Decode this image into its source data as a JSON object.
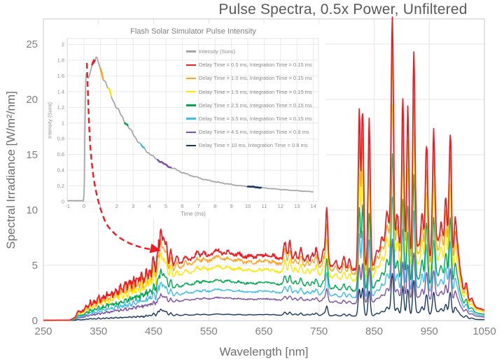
{
  "palette": {
    "gray": "#A6A6A6",
    "red": "#EA1C24",
    "orange": "#FFA227",
    "yellow": "#FFE60A",
    "green": "#00A550",
    "cyan": "#3FBCE9",
    "purple": "#7C52A0",
    "navy": "#17365D",
    "grid": "#E4E4E4",
    "border": "#C9C9C9",
    "tick_text": "#7F7F7F",
    "title_text": "#595959"
  },
  "chart_data": {
    "main": {
      "type": "line",
      "title": "Pulse Spectra, 0.5x Power, Unfiltered",
      "xlabel": "Wavelength [nm]",
      "ylabel": "Spectral Irradiance [W/m²/nm]",
      "xlim": [
        250,
        1050
      ],
      "ylim": [
        0,
        27.3
      ],
      "xticks": [
        250,
        350,
        450,
        550,
        650,
        750,
        850,
        950,
        1050
      ],
      "yticks": [
        0,
        5,
        10,
        15,
        20,
        25
      ],
      "grid": true,
      "series": [
        {
          "label": "Delay Time = 0.5 ms, Integration Time = 0.15 ms",
          "color": "red",
          "continuum_scale": 1.0,
          "line_scale": 1.0
        },
        {
          "label": "Delay Time = 1.0 ms, Integration Time = 0.15 ms",
          "color": "orange",
          "continuum_scale": 0.915,
          "line_scale": 0.84
        },
        {
          "label": "Delay Time = 1.5 ms, Integration Time = 0.15 ms",
          "color": "yellow",
          "continuum_scale": 0.785,
          "line_scale": 0.7
        },
        {
          "label": "Delay Time = 2.5 ms, Integration Time = 0.15 ms",
          "color": "green",
          "continuum_scale": 0.585,
          "line_scale": 0.53
        },
        {
          "label": "Delay Time = 3.5 ms, Integration Time = 0.15 ms",
          "color": "cyan",
          "continuum_scale": 0.45,
          "line_scale": 0.4
        },
        {
          "label": "Delay Time = 4.5 ms, Integration Time = 0.8 ms",
          "color": "purple",
          "continuum_scale": 0.335,
          "line_scale": 0.24
        },
        {
          "label": "Delay Time = 10 ms, Integration Time = 0.8 ms",
          "color": "navy",
          "continuum_scale": 0.088,
          "line_scale": 0.175
        }
      ],
      "continuum_anchors": [
        [
          250,
          0.03
        ],
        [
          298,
          0.04
        ],
        [
          306,
          0.25
        ],
        [
          312,
          0.55
        ],
        [
          320,
          0.85
        ],
        [
          330,
          1.12
        ],
        [
          340,
          1.38
        ],
        [
          352,
          1.7
        ],
        [
          365,
          2.05
        ],
        [
          378,
          2.38
        ],
        [
          392,
          2.72
        ],
        [
          406,
          3.05
        ],
        [
          420,
          3.38
        ],
        [
          434,
          3.68
        ],
        [
          448,
          3.98
        ],
        [
          462,
          4.35
        ],
        [
          476,
          4.72
        ],
        [
          490,
          5.05
        ],
        [
          505,
          5.35
        ],
        [
          520,
          5.6
        ],
        [
          538,
          5.78
        ],
        [
          556,
          5.88
        ],
        [
          575,
          5.92
        ],
        [
          595,
          5.88
        ],
        [
          612,
          5.72
        ],
        [
          628,
          5.62
        ],
        [
          645,
          5.68
        ],
        [
          662,
          5.62
        ],
        [
          680,
          5.6
        ],
        [
          698,
          5.55
        ],
        [
          715,
          5.42
        ],
        [
          732,
          5.3
        ],
        [
          750,
          5.22
        ],
        [
          765,
          5.1
        ],
        [
          778,
          4.85
        ],
        [
          792,
          4.68
        ],
        [
          806,
          4.6
        ],
        [
          820,
          4.65
        ],
        [
          835,
          4.72
        ],
        [
          850,
          4.95
        ],
        [
          862,
          5.3
        ],
        [
          872,
          5.7
        ],
        [
          882,
          6.1
        ],
        [
          892,
          5.95
        ],
        [
          905,
          5.6
        ],
        [
          920,
          5.35
        ],
        [
          935,
          5.22
        ],
        [
          950,
          5.2
        ],
        [
          963,
          5.3
        ],
        [
          975,
          5.35
        ],
        [
          988,
          5.2
        ],
        [
          998,
          4.3
        ],
        [
          1005,
          3.1
        ],
        [
          1012,
          2.1
        ],
        [
          1022,
          1.55
        ],
        [
          1035,
          1.2
        ],
        [
          1050,
          0.95
        ]
      ],
      "emission_lines": [
        [
          313,
          0.3,
          2.0
        ],
        [
          328,
          0.3,
          1.6
        ],
        [
          335,
          0.5,
          1.6
        ],
        [
          342,
          0.35,
          1.6
        ],
        [
          350,
          0.6,
          1.6
        ],
        [
          358,
          0.4,
          1.6
        ],
        [
          365,
          0.5,
          1.6
        ],
        [
          373,
          0.35,
          1.6
        ],
        [
          381,
          0.45,
          1.6
        ],
        [
          390,
          0.4,
          1.6
        ],
        [
          398,
          0.5,
          1.6
        ],
        [
          406,
          0.45,
          1.6
        ],
        [
          414,
          0.55,
          1.6
        ],
        [
          421,
          0.6,
          1.6
        ],
        [
          428,
          0.55,
          1.6
        ],
        [
          436,
          0.75,
          1.6
        ],
        [
          443,
          0.95,
          1.8
        ],
        [
          450,
          1.7,
          2.0
        ],
        [
          458,
          2.3,
          2.0
        ],
        [
          463,
          3.6,
          2.0
        ],
        [
          468,
          2.7,
          2.0
        ],
        [
          473,
          2.3,
          2.0
        ],
        [
          481,
          1.6,
          2.0
        ],
        [
          492,
          0.7,
          2.2
        ],
        [
          508,
          0.45,
          3.0
        ],
        [
          529,
          0.5,
          3.0
        ],
        [
          541,
          0.4,
          3.0
        ],
        [
          565,
          0.5,
          6.0
        ],
        [
          585,
          0.35,
          4.0
        ],
        [
          605,
          0.3,
          4.0
        ],
        [
          625,
          0.25,
          4.0
        ],
        [
          642,
          0.3,
          4.0
        ],
        [
          655,
          0.35,
          4.0
        ],
        [
          667,
          0.3,
          3.0
        ],
        [
          688,
          1.5,
          2.2
        ],
        [
          697,
          1.6,
          2.2
        ],
        [
          707,
          0.7,
          2.2
        ],
        [
          717,
          1.2,
          2.2
        ],
        [
          729,
          0.6,
          2.2
        ],
        [
          738,
          0.8,
          2.2
        ],
        [
          745,
          1.3,
          2.2
        ],
        [
          758,
          1.1,
          2.2
        ],
        [
          764,
          4.9,
          2.0
        ],
        [
          780,
          0.6,
          2.5
        ],
        [
          795,
          1.1,
          2.2
        ],
        [
          805,
          0.9,
          2.2
        ],
        [
          823,
          13.9,
          2.0
        ],
        [
          829,
          14.3,
          2.0
        ],
        [
          841,
          13.1,
          2.0
        ],
        [
          855,
          1.2,
          3.0
        ],
        [
          864,
          2.0,
          3.0
        ],
        [
          873,
          2.6,
          2.5
        ],
        [
          878,
          2.0,
          6.0
        ],
        [
          883,
          20.3,
          2.0
        ],
        [
          892,
          3.5,
          2.5
        ],
        [
          902,
          14.6,
          2.0
        ],
        [
          911,
          13.6,
          2.0
        ],
        [
          922,
          17.6,
          2.0
        ],
        [
          930,
          1.4,
          8.0
        ],
        [
          937,
          3.5,
          2.2
        ],
        [
          945,
          10.6,
          2.2
        ],
        [
          958,
          10.6,
          2.2
        ],
        [
          965,
          1.8,
          8.0
        ],
        [
          972,
          2.2,
          2.5
        ],
        [
          980,
          5.5,
          2.2
        ],
        [
          988,
          11.8,
          2.2
        ],
        [
          997,
          4.5,
          2.2
        ],
        [
          1002,
          2.5,
          2.5
        ],
        [
          1008,
          1.2,
          3.0
        ],
        [
          1017,
          1.6,
          2.5
        ],
        [
          1027,
          0.6,
          3.0
        ]
      ]
    },
    "inset": {
      "type": "line",
      "title": "Flash Solar Simulator Pulse Intensity",
      "xlabel": "Time (ms)",
      "ylabel": "Intensity (Suns)",
      "xlim": [
        -1,
        14
      ],
      "ylim": [
        0,
        2.07
      ],
      "xticks": [
        -1,
        0,
        1,
        2,
        3,
        4,
        5,
        6,
        7,
        8,
        9,
        10,
        11,
        12,
        13,
        14
      ],
      "yticks": [
        0,
        0.2,
        0.4,
        0.6,
        0.8,
        1,
        1.2,
        1.4,
        1.6,
        1.8,
        2
      ],
      "grid": true,
      "legend_intensity_label": "Intensity (Suns)",
      "legend_intensity_color": "gray",
      "pulse_anchors": [
        [
          -1,
          0.012
        ],
        [
          -0.02,
          0.012
        ],
        [
          0.02,
          0.25
        ],
        [
          0.06,
          1.05
        ],
        [
          0.1,
          1.5
        ],
        [
          0.14,
          1.63
        ],
        [
          0.2,
          1.6
        ],
        [
          0.27,
          1.57
        ],
        [
          0.33,
          1.6
        ],
        [
          0.42,
          1.68
        ],
        [
          0.52,
          1.76
        ],
        [
          0.62,
          1.81
        ],
        [
          0.72,
          1.82
        ],
        [
          0.82,
          1.79
        ],
        [
          0.92,
          1.74
        ],
        [
          1.02,
          1.67
        ],
        [
          1.12,
          1.62
        ],
        [
          1.25,
          1.55
        ],
        [
          1.4,
          1.47
        ],
        [
          1.55,
          1.4
        ],
        [
          1.7,
          1.33
        ],
        [
          1.85,
          1.26
        ],
        [
          2.0,
          1.2
        ],
        [
          2.2,
          1.12
        ],
        [
          2.4,
          1.05
        ],
        [
          2.6,
          0.99
        ],
        [
          2.8,
          0.92
        ],
        [
          3.0,
          0.86
        ],
        [
          3.2,
          0.8
        ],
        [
          3.4,
          0.74
        ],
        [
          3.6,
          0.69
        ],
        [
          3.8,
          0.65
        ],
        [
          4.0,
          0.61
        ],
        [
          4.2,
          0.575
        ],
        [
          4.4,
          0.545
        ],
        [
          4.6,
          0.52
        ],
        [
          4.8,
          0.49
        ],
        [
          5.0,
          0.465
        ],
        [
          5.3,
          0.435
        ],
        [
          5.6,
          0.41
        ],
        [
          6.0,
          0.37
        ],
        [
          6.4,
          0.34
        ],
        [
          6.8,
          0.315
        ],
        [
          7.2,
          0.29
        ],
        [
          7.6,
          0.27
        ],
        [
          8.0,
          0.253
        ],
        [
          8.4,
          0.238
        ],
        [
          8.8,
          0.225
        ],
        [
          9.2,
          0.21
        ],
        [
          9.6,
          0.2
        ],
        [
          10.0,
          0.193
        ],
        [
          10.4,
          0.185
        ],
        [
          10.8,
          0.178
        ],
        [
          11.2,
          0.17
        ],
        [
          11.6,
          0.162
        ],
        [
          12.0,
          0.154
        ],
        [
          12.4,
          0.148
        ],
        [
          12.8,
          0.142
        ],
        [
          13.2,
          0.136
        ],
        [
          13.6,
          0.13
        ],
        [
          14.0,
          0.125
        ]
      ],
      "integration_windows": [
        {
          "color": "red",
          "t0": 0.5,
          "t1": 0.66
        },
        {
          "color": "orange",
          "t0": 1.0,
          "t1": 1.16
        },
        {
          "color": "yellow",
          "t0": 1.5,
          "t1": 1.66
        },
        {
          "color": "green",
          "t0": 2.5,
          "t1": 2.66
        },
        {
          "color": "cyan",
          "t0": 3.5,
          "t1": 3.66
        },
        {
          "color": "purple",
          "t0": 4.5,
          "t1": 5.3
        },
        {
          "color": "navy",
          "t0": 10.0,
          "t1": 10.8
        }
      ]
    },
    "annotation_arrow": {
      "color": "red",
      "style": "dashed",
      "points_from": "inset pulse peak",
      "points_to": "467 nm spectral peak"
    }
  }
}
